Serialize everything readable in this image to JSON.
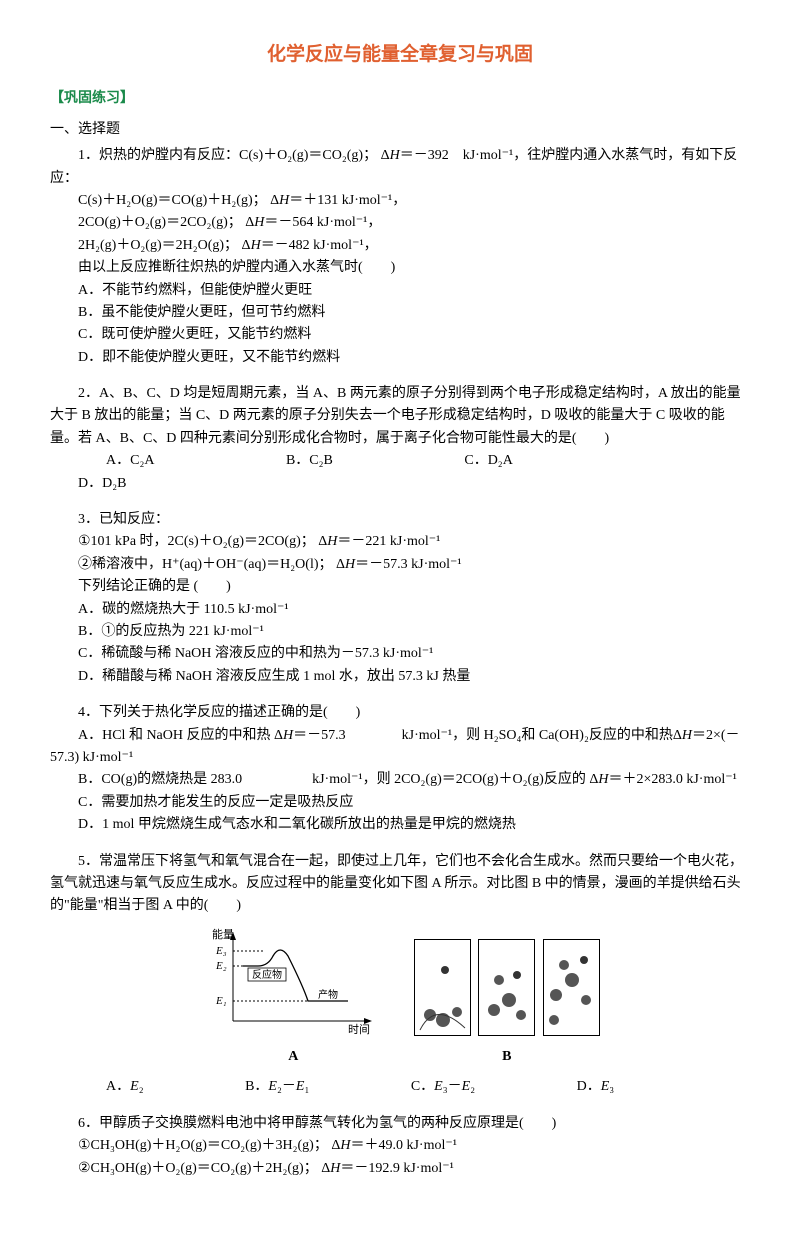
{
  "title": "化学反应与能量全章复习与巩固",
  "section_header": "【巩固练习】",
  "section1_title": "一、选择题",
  "q1": {
    "stem": "1．炽热的炉膛内有反应：C(s)＋O₂(g)＝CO₂(g)；  Δ<i>H</i>＝－392　kJ·mol⁻¹，往炉膛内通入水蒸气时，有如下反应：",
    "l1": "C(s)＋H₂O(g)＝CO(g)＋H₂(g)；  Δ<i>H</i>＝＋131 kJ·mol⁻¹，",
    "l2": "2CO(g)＋O₂(g)＝2CO₂(g)；  Δ<i>H</i>＝－564 kJ·mol⁻¹，",
    "l3": "2H₂(g)＋O₂(g)＝2H₂O(g)；  Δ<i>H</i>＝－482  kJ·mol⁻¹，",
    "l4": "由以上反应推断往炽热的炉膛内通入水蒸气时(　　)",
    "a": "A．不能节约燃料，但能使炉膛火更旺",
    "b": "B．虽不能使炉膛火更旺，但可节约燃料",
    "c": "C．既可使炉膛火更旺，又能节约燃料",
    "d": "D．即不能使炉膛火更旺，又不能节约燃料"
  },
  "q2": {
    "stem": "2．A、B、C、D 均是短周期元素，当 A、B 两元素的原子分别得到两个电子形成稳定结构时，A 放出的能量大于 B 放出的能量；当 C、D 两元素的原子分别失去一个电子形成稳定结构时，D 吸收的能量大于 C 吸收的能量。若 A、B、C、D 四种元素间分别形成化合物时，属于离子化合物可能性最大的是(　　)",
    "a": "A．C₂A",
    "b": "B．C₂B",
    "c": "C．D₂A",
    "d": "D．D₂B"
  },
  "q3": {
    "stem": "3．已知反应：",
    "l1": "①101 kPa 时，2C(s)＋O₂(g)＝2CO(g)；  Δ<i>H</i>＝－221 kJ·mol⁻¹",
    "l2": "②稀溶液中，H⁺(aq)＋OH⁻(aq)＝H₂O(l)；  Δ<i>H</i>＝－57.3 kJ·mol⁻¹",
    "l3": "下列结论正确的是 (　　)",
    "a": "A．碳的燃烧热大于 110.5 kJ·mol⁻¹",
    "b": "B．①的反应热为 221 kJ·mol⁻¹",
    "c": "C．稀硫酸与稀 NaOH 溶液反应的中和热为－57.3 kJ·mol⁻¹",
    "d": "D．稀醋酸与稀 NaOH 溶液反应生成 1 mol 水，放出 57.3 kJ 热量"
  },
  "q4": {
    "stem": "4．下列关于热化学反应的描述正确的是(　　)",
    "a": "A．HCl 和 NaOH 反应的中和热 Δ<i>H</i>＝－57.3　　　　kJ·mol⁻¹，则 H₂SO₄和 Ca(OH)₂反应的中和热Δ<i>H</i>＝2×(－57.3) kJ·mol⁻¹",
    "b": "B．CO(g)的燃烧热是 283.0　　　　　kJ·mol⁻¹，则 2CO₂(g)＝2CO(g)＋O₂(g)反应的 Δ<i>H</i>＝＋2×283.0 kJ·mol⁻¹",
    "c": "C．需要加热才能发生的反应一定是吸热反应",
    "d": "D．1 mol 甲烷燃烧生成气态水和二氧化碳所放出的热量是甲烷的燃烧热"
  },
  "q5": {
    "stem": "5．常温常压下将氢气和氧气混合在一起，即使过上几年，它们也不会化合生成水。然而只要给一个电火花，氢气就迅速与氧气反应生成水。反应过程中的能量变化如下图 A 所示。对比图 B 中的情景，漫画的羊提供给石头的\"能量\"相当于图 A 中的(　　)",
    "a": "A．<i>E</i>₂",
    "b": "B．<i>E</i>₂－<i>E</i>₁",
    "c": "C．<i>E</i>₃－<i>E</i>₂",
    "d": "D．<i>E</i>₃"
  },
  "q5_chart": {
    "ylabel": "能量",
    "xlabel": "时间",
    "e3": "E₃",
    "e2": "E₂",
    "e1": "E₁",
    "reactant": "反应物",
    "product": "产物",
    "labelA": "A",
    "labelB": "B"
  },
  "q6": {
    "stem": "6．甲醇质子交换膜燃料电池中将甲醇蒸气转化为氢气的两种反应原理是(　　)",
    "l1": "①CH₃OH(g)＋H₂O(g)＝CO₂(g)＋3H₂(g)；  Δ<i>H</i>＝＋49.0 kJ·mol⁻¹",
    "l2": "②CH₃OH(g)＋O₂(g)＝CO₂(g)＋2H₂(g)；  Δ<i>H</i>＝－192.9 kJ·mol⁻¹"
  }
}
